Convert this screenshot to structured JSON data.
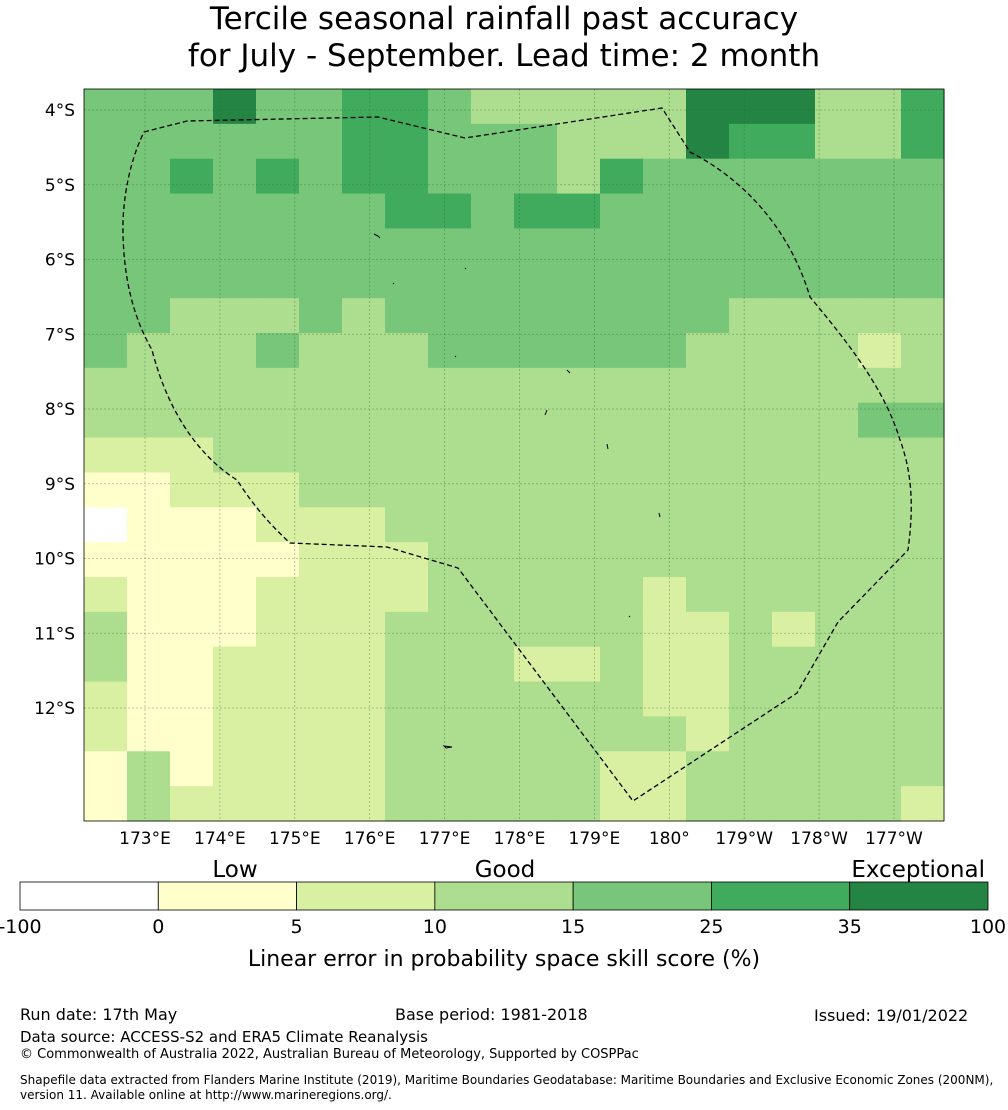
{
  "title": {
    "line1": "Tercile seasonal rainfall past accuracy",
    "line2": "for July - September. Lead time: 2 month"
  },
  "map": {
    "lat_labels": [
      "4°S",
      "5°S",
      "6°S",
      "7°S",
      "8°S",
      "9°S",
      "10°S",
      "11°S",
      "12°S"
    ],
    "lon_labels": [
      "173°E",
      "174°E",
      "175°E",
      "176°E",
      "177°E",
      "178°E",
      "179°E",
      "180°",
      "179°W",
      "178°W",
      "177°W"
    ],
    "grid": [
      "44464455433333666335",
      "44444455444333655335",
      "44545455444354444444",
      "44444445545544444444",
      "44444444444444444444",
      "44444444444444444444",
      "44333434444444433333",
      "43334333444444333323",
      "33333333333333333333",
      "33333333333333333344",
      "22233333333333333333",
      "11222333333333333333",
      "01112223333333333333",
      "11111222333333333333",
      "21112222333332333333",
      "31112223333332232333",
      "31122223332232233333",
      "21122223333332233333",
      "21122223333333233333",
      "13122223333322333333",
      "13222223333322333332"
    ]
  },
  "legend": {
    "categories": [
      "Low",
      "Good",
      "Exceptional"
    ],
    "ticks": [
      "-100",
      "0",
      "5",
      "10",
      "15",
      "25",
      "35",
      "100"
    ],
    "colors": [
      "#ffffff",
      "#ffffcc",
      "#d9f0a3",
      "#addd8e",
      "#78c679",
      "#41ab5d",
      "#238443"
    ],
    "label": "Linear error in probability space skill score (%)"
  },
  "footer": {
    "run_date": "Run date: 17th May",
    "base_period": "Base period: 1981-2018",
    "issued": "Issued: 19/01/2022",
    "data_source": "Data source: ACCESS-S2 and ERA5 Climate Reanalysis",
    "copyright": "© Commonwealth of Australia 2022, Australian Bureau of Meteorology, Supported by COSPPac",
    "shapefile1": "Shapefile data extracted from Flanders Marine Institute (2019), Maritime Boundaries Geodatabase: Maritime Boundaries and Exclusive Economic Zones (200NM),",
    "shapefile2": "version 11. Available online at http://www.marineregions.org/."
  }
}
